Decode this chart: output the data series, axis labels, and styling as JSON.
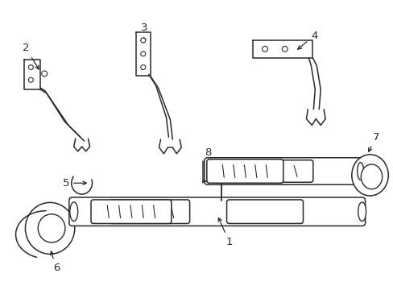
{
  "bg_color": "#ffffff",
  "line_color": "#2a2a2a",
  "line_width": 1.1,
  "fig_w": 4.89,
  "fig_h": 3.6,
  "dpi": 100
}
